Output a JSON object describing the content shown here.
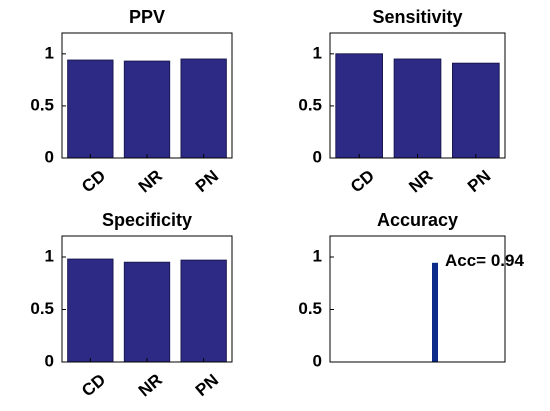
{
  "chart_data": [
    {
      "type": "bar",
      "title": "PPV",
      "categories": [
        "CD",
        "NR",
        "PN"
      ],
      "values": [
        0.94,
        0.93,
        0.95
      ],
      "color": "#2d2a86",
      "ylim": [
        0,
        1.2
      ],
      "yticks": [
        0,
        0.5,
        1
      ]
    },
    {
      "type": "bar",
      "title": "Sensitivity",
      "categories": [
        "CD",
        "NR",
        "PN"
      ],
      "values": [
        1.0,
        0.95,
        0.91
      ],
      "color": "#2d2a86",
      "ylim": [
        0,
        1.2
      ],
      "yticks": [
        0,
        0.5,
        1
      ]
    },
    {
      "type": "bar",
      "title": "Specificity",
      "categories": [
        "CD",
        "NR",
        "PN"
      ],
      "values": [
        0.98,
        0.95,
        0.97
      ],
      "color": "#2d2a86",
      "ylim": [
        0,
        1.2
      ],
      "yticks": [
        0,
        0.5,
        1
      ]
    },
    {
      "type": "bar",
      "title": "Accuracy",
      "x": [
        1
      ],
      "xlim": [
        0.4,
        1.4
      ],
      "values": [
        0.94
      ],
      "color": "#0b2a8a",
      "ylim": [
        0,
        1.2
      ],
      "yticks": [
        0,
        0.5,
        1
      ],
      "annotation": "Acc= 0.94"
    }
  ]
}
